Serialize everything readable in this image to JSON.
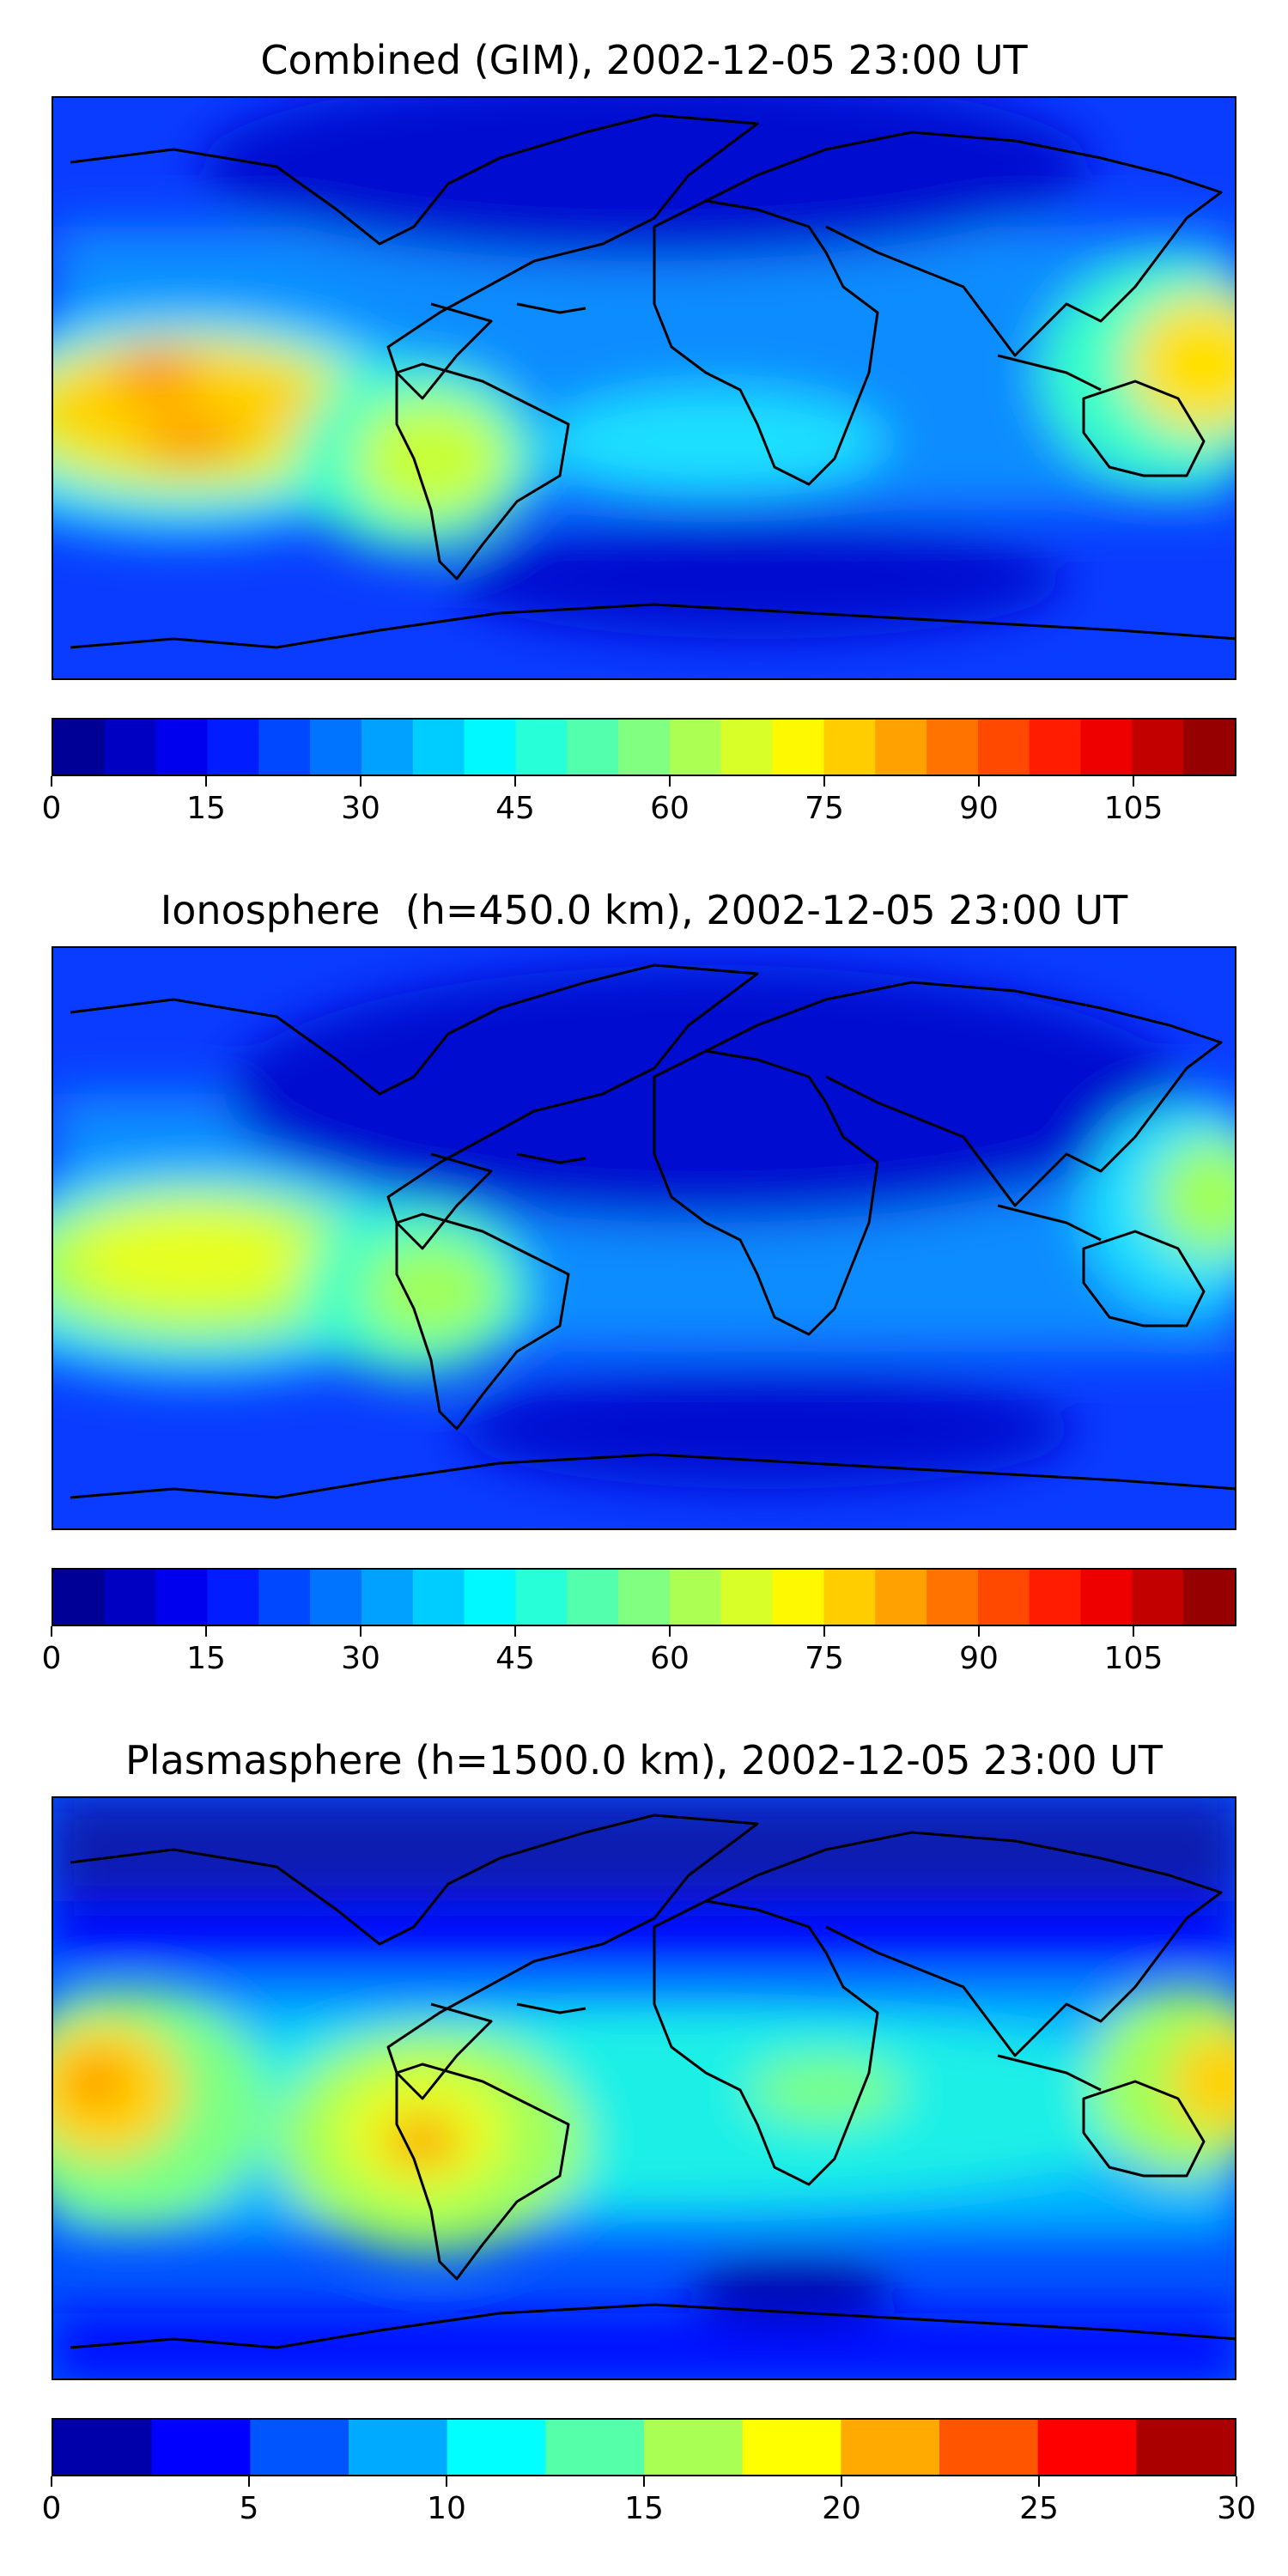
{
  "panels": [
    {
      "title": "Combined (GIM), 2002-12-05 23:00 UT",
      "colorbar": {
        "min": 0,
        "max": 115,
        "levels": 23,
        "ticks": [
          "0",
          "15",
          "30",
          "45",
          "60",
          "75",
          "90",
          "105"
        ],
        "tick_values": [
          0,
          15,
          30,
          45,
          60,
          75,
          90,
          105
        ]
      }
    },
    {
      "title": "Ionosphere  (h=450.0 km), 2002-12-05 23:00 UT",
      "colorbar": {
        "min": 0,
        "max": 115,
        "levels": 23,
        "ticks": [
          "0",
          "15",
          "30",
          "45",
          "60",
          "75",
          "90",
          "105"
        ],
        "tick_values": [
          0,
          15,
          30,
          45,
          60,
          75,
          90,
          105
        ]
      }
    },
    {
      "title": "Plasmasphere (h=1500.0 km), 2002-12-05 23:00 UT",
      "colorbar": {
        "min": 0,
        "max": 30,
        "levels": 12,
        "ticks": [
          "0",
          "5",
          "10",
          "15",
          "20",
          "25",
          "30"
        ],
        "tick_values": [
          0,
          5,
          10,
          15,
          20,
          25,
          30
        ]
      }
    }
  ],
  "colormap": "jet"
}
